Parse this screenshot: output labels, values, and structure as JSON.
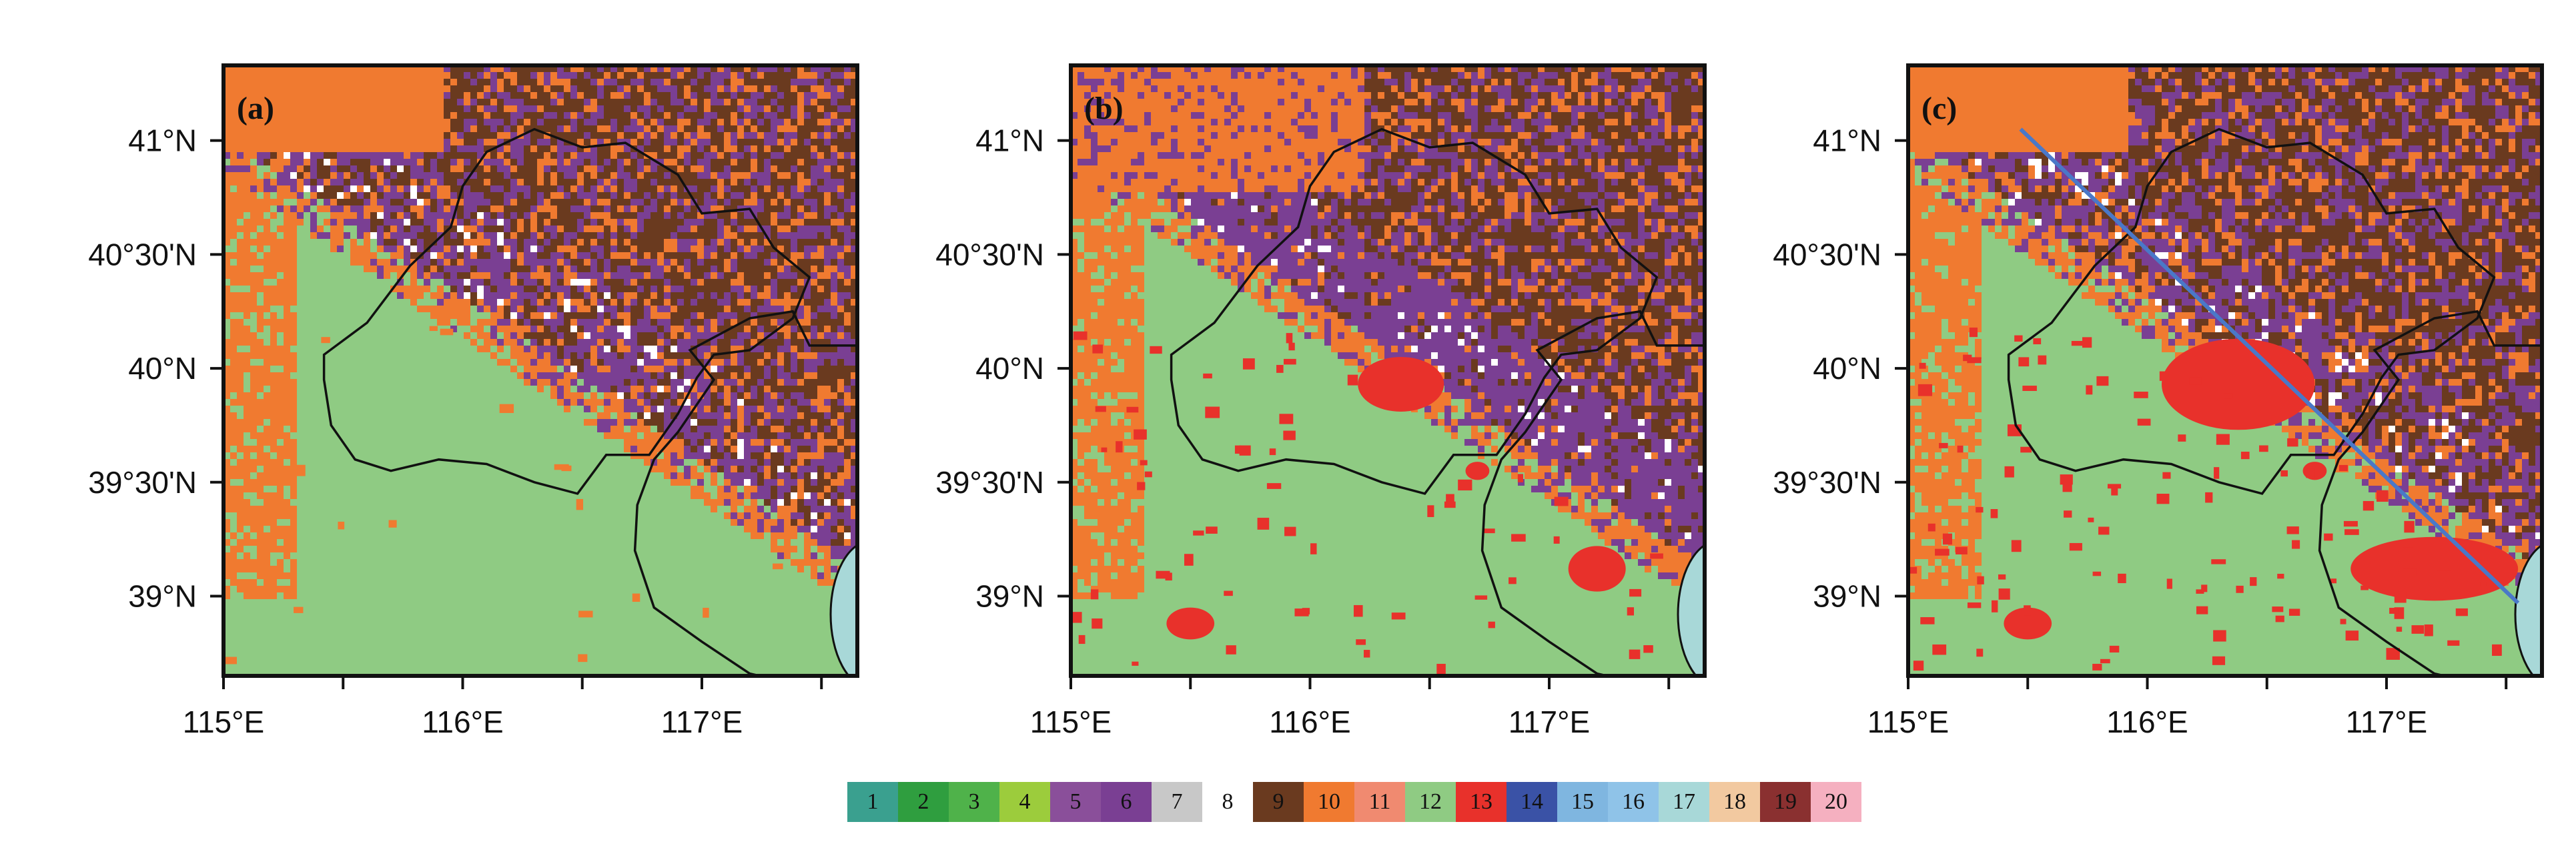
{
  "panels": [
    {
      "tag": "(a)",
      "transect": false
    },
    {
      "tag": "(b)",
      "transect": false
    },
    {
      "tag": "(c)",
      "transect": true
    }
  ],
  "axis": {
    "x_ticks": [
      "115°E",
      "116°E",
      "117°E"
    ],
    "y_ticks": [
      "41°N",
      "40°30'N",
      "40°N",
      "39°30'N",
      "39°N"
    ]
  },
  "legend": {
    "items": [
      {
        "label": "1",
        "color": "#3aa08f"
      },
      {
        "label": "2",
        "color": "#2f9e3f"
      },
      {
        "label": "3",
        "color": "#4fb24a"
      },
      {
        "label": "4",
        "color": "#9ccc3c"
      },
      {
        "label": "5",
        "color": "#8a4f9a"
      },
      {
        "label": "6",
        "color": "#7a3f93"
      },
      {
        "label": "7",
        "color": "#c8c8c8"
      },
      {
        "label": "8",
        "color": "#ffffff"
      },
      {
        "label": "9",
        "color": "#6a3a1f"
      },
      {
        "label": "10",
        "color": "#f07a30"
      },
      {
        "label": "11",
        "color": "#f08a70"
      },
      {
        "label": "12",
        "color": "#8fcb83"
      },
      {
        "label": "13",
        "color": "#e8312b"
      },
      {
        "label": "14",
        "color": "#3a52a6"
      },
      {
        "label": "15",
        "color": "#7fb6e0"
      },
      {
        "label": "16",
        "color": "#8fc3e8"
      },
      {
        "label": "17",
        "color": "#a8d8d8"
      },
      {
        "label": "18",
        "color": "#f2c9a0"
      },
      {
        "label": "19",
        "color": "#8a3030"
      },
      {
        "label": "20",
        "color": "#f5b0c0"
      }
    ]
  },
  "colors": {
    "cropland": "#8fcb83",
    "shrub_orange": "#f07a30",
    "forest_purple": "#7a3f93",
    "forest_brown": "#6a3a1f",
    "urban_red": "#e8312b",
    "water": "#a8d8d8",
    "transect_line": "#4a78c8"
  }
}
